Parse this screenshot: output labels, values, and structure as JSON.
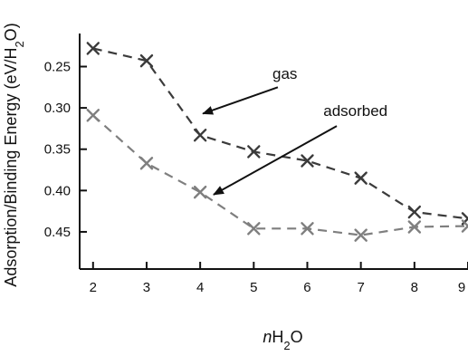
{
  "chart_data": {
    "type": "line",
    "title": "",
    "xlabel": {
      "italic": "n",
      "base": "H",
      "sub": "2",
      "tail": "O"
    },
    "ylabel": {
      "pre": "Adsorption/Binding Energy (eV/H",
      "sub": "2",
      "post": "O)"
    },
    "x": [
      2,
      3,
      4,
      5,
      6,
      7,
      8,
      9
    ],
    "x_tick_labels": [
      "2",
      "3",
      "4",
      "5",
      "6",
      "7",
      "8",
      "9"
    ],
    "xlim": [
      1.75,
      9
    ],
    "ylim": [
      0.21,
      0.495
    ],
    "y_reversed": true,
    "y_ticks": [
      0.25,
      0.3,
      0.35,
      0.4,
      0.45
    ],
    "y_tick_labels": [
      "0.25",
      "0.30",
      "0.35",
      "0.40",
      "0.45"
    ],
    "grid": false,
    "series": [
      {
        "name": "gas",
        "color": "#3b3b3b",
        "marker": "x",
        "line_style": "dashed",
        "values": [
          0.228,
          0.243,
          0.333,
          0.353,
          0.364,
          0.385,
          0.426,
          0.434
        ]
      },
      {
        "name": "adsorbed",
        "color": "#7f7f7f",
        "marker": "x",
        "line_style": "dashed",
        "values": [
          0.309,
          0.367,
          0.402,
          0.446,
          0.446,
          0.454,
          0.444,
          0.443
        ]
      }
    ],
    "annotations": [
      {
        "series": "gas",
        "text": "gas",
        "text_at": {
          "x": 5.35,
          "y": 0.265
        },
        "arrow_from": {
          "x": 5.45,
          "y": 0.275
        },
        "arrow_to": {
          "x": 4.05,
          "y": 0.307
        }
      },
      {
        "series": "adsorbed",
        "text": "adsorbed",
        "text_at": {
          "x": 6.3,
          "y": 0.31
        },
        "arrow_from": {
          "x": 6.55,
          "y": 0.322
        },
        "arrow_to": {
          "x": 4.25,
          "y": 0.405
        }
      }
    ]
  }
}
